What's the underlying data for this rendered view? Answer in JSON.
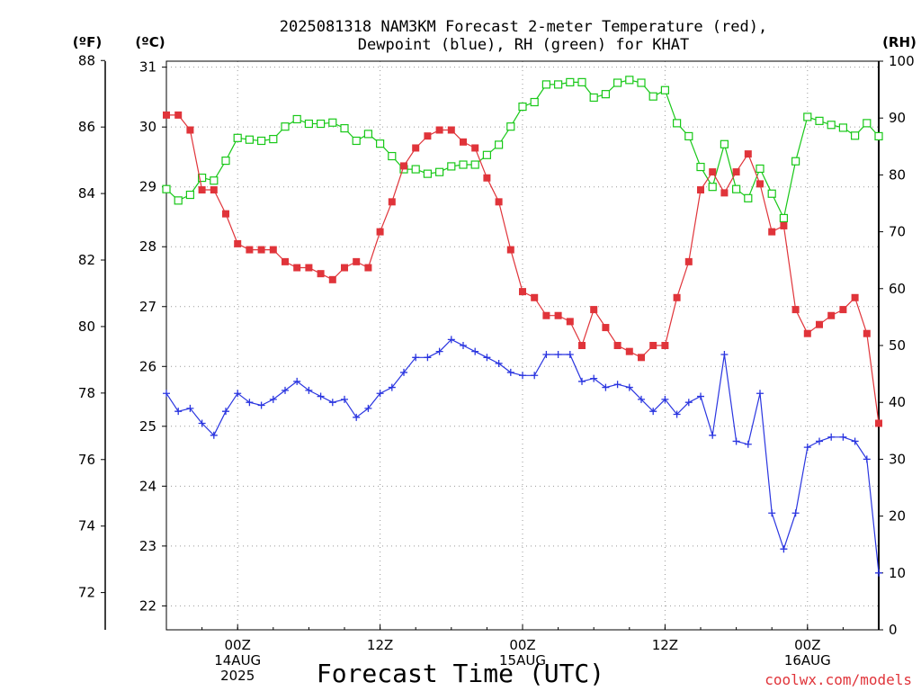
{
  "chart_data": {
    "type": "line",
    "title_lines": [
      "2025081318 NAM3KM Forecast 2-meter Temperature (red),",
      "Dewpoint (blue), RH (green) for KHAT"
    ],
    "units": {
      "f": "(ºF)",
      "c": "(ºC)",
      "rh": "(RH)"
    },
    "xlabel": "Forecast Time (UTC)",
    "credit": "coolwx.com/models",
    "x_range_hours": [
      -6,
      54
    ],
    "x_ticks": [
      {
        "hour": 0,
        "lines": [
          "00Z",
          "14AUG",
          "2025"
        ]
      },
      {
        "hour": 12,
        "lines": [
          "12Z"
        ]
      },
      {
        "hour": 24,
        "lines": [
          "00Z",
          "15AUG"
        ]
      },
      {
        "hour": 36,
        "lines": [
          "12Z"
        ]
      },
      {
        "hour": 48,
        "lines": [
          "00Z",
          "16AUG"
        ]
      }
    ],
    "c_axis": {
      "min": 21.6,
      "max": 31.1,
      "ticks": [
        22,
        23,
        24,
        25,
        26,
        27,
        28,
        29,
        30,
        31
      ]
    },
    "f_axis": {
      "ticks": [
        72,
        74,
        76,
        78,
        80,
        82,
        84,
        86,
        88
      ]
    },
    "rh_axis": {
      "min": 0,
      "max": 100,
      "ticks": [
        0,
        10,
        20,
        30,
        40,
        50,
        60,
        70,
        80,
        90,
        100
      ]
    },
    "grid": true,
    "colors": {
      "temperature": "#e0343a",
      "dewpoint": "#2a35e0",
      "rh": "#18c818",
      "credit": "#e0343a"
    },
    "series": {
      "temperature_c": {
        "hours": [
          -6,
          -5,
          -4,
          -3,
          -2,
          -1,
          0,
          1,
          2,
          3,
          4,
          5,
          6,
          7,
          8,
          9,
          10,
          11,
          12,
          13,
          14,
          15,
          16,
          17,
          18,
          19,
          20,
          21,
          22,
          23,
          24,
          25,
          26,
          27,
          28,
          29,
          30,
          31,
          32,
          33,
          34,
          35,
          36,
          37,
          38,
          39,
          40,
          41,
          42,
          43,
          44,
          45,
          46,
          47,
          48,
          49,
          50,
          51,
          52,
          53,
          54
        ],
        "values": [
          30.2,
          30.2,
          29.95,
          28.95,
          28.95,
          28.55,
          28.05,
          27.95,
          27.95,
          27.95,
          27.75,
          27.65,
          27.65,
          27.55,
          27.45,
          27.65,
          27.75,
          27.65,
          28.25,
          28.75,
          29.35,
          29.65,
          29.85,
          29.95,
          29.95,
          29.75,
          29.65,
          29.15,
          28.75,
          27.95,
          27.25,
          27.15,
          26.85,
          26.85,
          26.75,
          26.35,
          26.95,
          26.65,
          26.35,
          26.25,
          26.15,
          26.35,
          26.35,
          27.15,
          27.75,
          28.95,
          29.25,
          28.9,
          29.25,
          29.55,
          29.05,
          28.25,
          28.35,
          26.95,
          26.55,
          26.7,
          26.85,
          26.95,
          27.15,
          26.55,
          25.05
        ]
      },
      "dewpoint_c": {
        "hours": [
          -6,
          -5,
          -4,
          -3,
          -2,
          -1,
          0,
          1,
          2,
          3,
          4,
          5,
          6,
          7,
          8,
          9,
          10,
          11,
          12,
          13,
          14,
          15,
          16,
          17,
          18,
          19,
          20,
          21,
          22,
          23,
          24,
          25,
          26,
          27,
          28,
          29,
          30,
          31,
          32,
          33,
          34,
          35,
          36,
          37,
          38,
          39,
          40,
          41,
          42,
          43,
          44,
          45,
          46,
          47,
          48,
          49,
          50,
          51,
          52,
          53,
          54
        ],
        "values": [
          25.55,
          25.25,
          25.3,
          25.05,
          24.85,
          25.25,
          25.55,
          25.4,
          25.35,
          25.45,
          25.6,
          25.75,
          25.6,
          25.5,
          25.4,
          25.45,
          25.15,
          25.3,
          25.55,
          25.65,
          25.9,
          26.15,
          26.15,
          26.25,
          26.45,
          26.35,
          26.25,
          26.15,
          26.05,
          25.9,
          25.85,
          25.85,
          26.2,
          26.2,
          26.2,
          25.75,
          25.8,
          25.65,
          25.7,
          25.65,
          25.45,
          25.25,
          25.45,
          25.2,
          25.4,
          25.5,
          24.85,
          26.2,
          24.75,
          24.7,
          25.55,
          23.55,
          22.95,
          23.55,
          24.65,
          24.75,
          24.82,
          24.82,
          24.75,
          24.45,
          22.55
        ]
      },
      "rh_percent": {
        "hours": [
          -6,
          -5,
          -4,
          -3,
          -2,
          -1,
          0,
          1,
          2,
          3,
          4,
          5,
          6,
          7,
          8,
          9,
          10,
          11,
          12,
          13,
          14,
          15,
          16,
          17,
          18,
          19,
          20,
          21,
          22,
          23,
          24,
          25,
          26,
          27,
          28,
          29,
          30,
          31,
          32,
          33,
          34,
          35,
          36,
          37,
          38,
          39,
          40,
          41,
          42,
          43,
          44,
          45,
          46,
          47,
          48,
          49,
          50,
          51,
          52,
          53,
          54
        ],
        "values": [
          77.5,
          75.5,
          76.5,
          79.5,
          79,
          82.5,
          86.5,
          86.2,
          86,
          86.3,
          88.5,
          89.8,
          89,
          89,
          89.2,
          88.2,
          86,
          87.2,
          85.5,
          83.3,
          81,
          81,
          80.2,
          80.5,
          81.5,
          81.8,
          81.8,
          83.5,
          85.3,
          88.5,
          92,
          92.8,
          95.9,
          95.9,
          96.3,
          96.3,
          93.6,
          94.2,
          96.2,
          96.7,
          96.2,
          93.8,
          94.9,
          89.1,
          86.8,
          81.4,
          77.9,
          85.4,
          77.5,
          75.9,
          81.1,
          76.7,
          72.4,
          82.4,
          90.2,
          89.5,
          88.8,
          88.3,
          86.9,
          89.1,
          86.8
        ]
      }
    }
  }
}
